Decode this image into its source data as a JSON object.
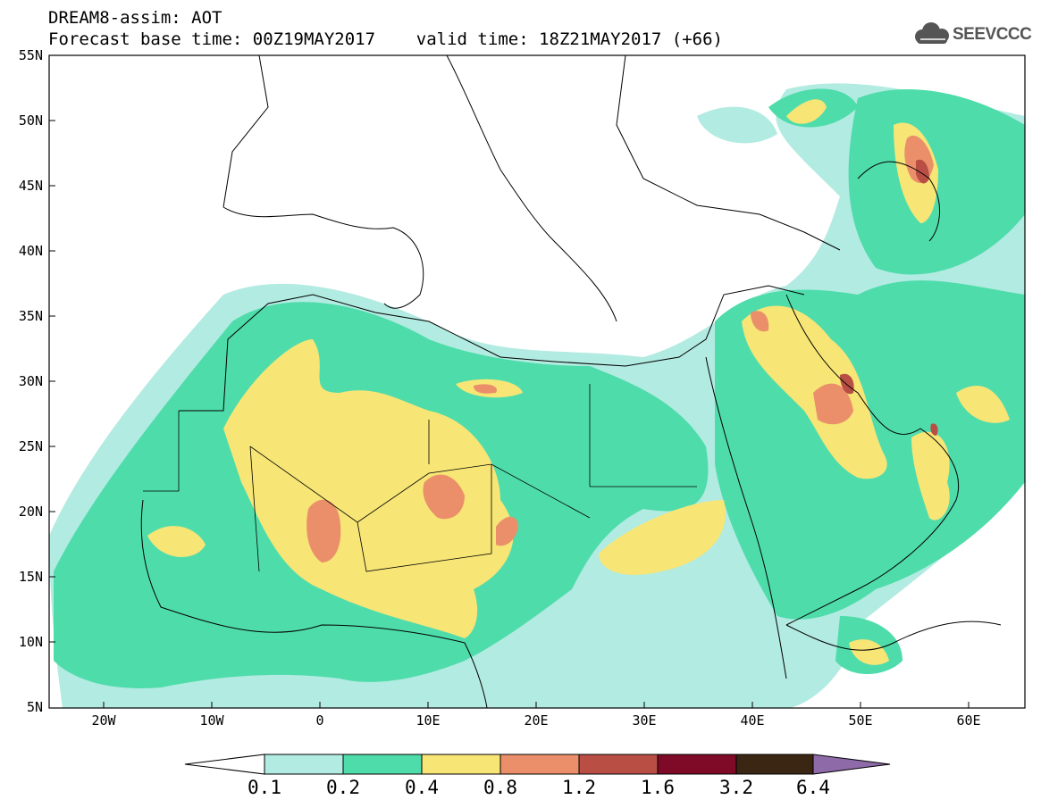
{
  "header": {
    "line1": "DREAM8-assim: AOT",
    "line2": "Forecast base time: 00Z19MAY2017    valid time: 18Z21MAY2017 (+66)"
  },
  "logo": {
    "text": "SEEVCCC",
    "icon": "cloud-icon"
  },
  "map": {
    "region": "North Africa, Europe, Middle East",
    "lon_range": [
      -25,
      65
    ],
    "lat_range": [
      5,
      55
    ],
    "y_ticks": [
      "55N",
      "50N",
      "45N",
      "40N",
      "35N",
      "30N",
      "25N",
      "20N",
      "15N",
      "10N",
      "5N"
    ],
    "x_ticks": [
      "20W",
      "10W",
      "0",
      "10E",
      "20E",
      "30E",
      "40E",
      "50E",
      "60E"
    ]
  },
  "colorbar": {
    "labels": [
      "0.1",
      "0.2",
      "0.4",
      "0.8",
      "1.2",
      "1.6",
      "3.2",
      "6.4"
    ],
    "colors": [
      "#ffffff",
      "#b2ebe1",
      "#4fdcab",
      "#f7e576",
      "#ea8f6a",
      "#b94f44",
      "#7e0a27",
      "#3a2612",
      "#8f6aa9"
    ]
  }
}
